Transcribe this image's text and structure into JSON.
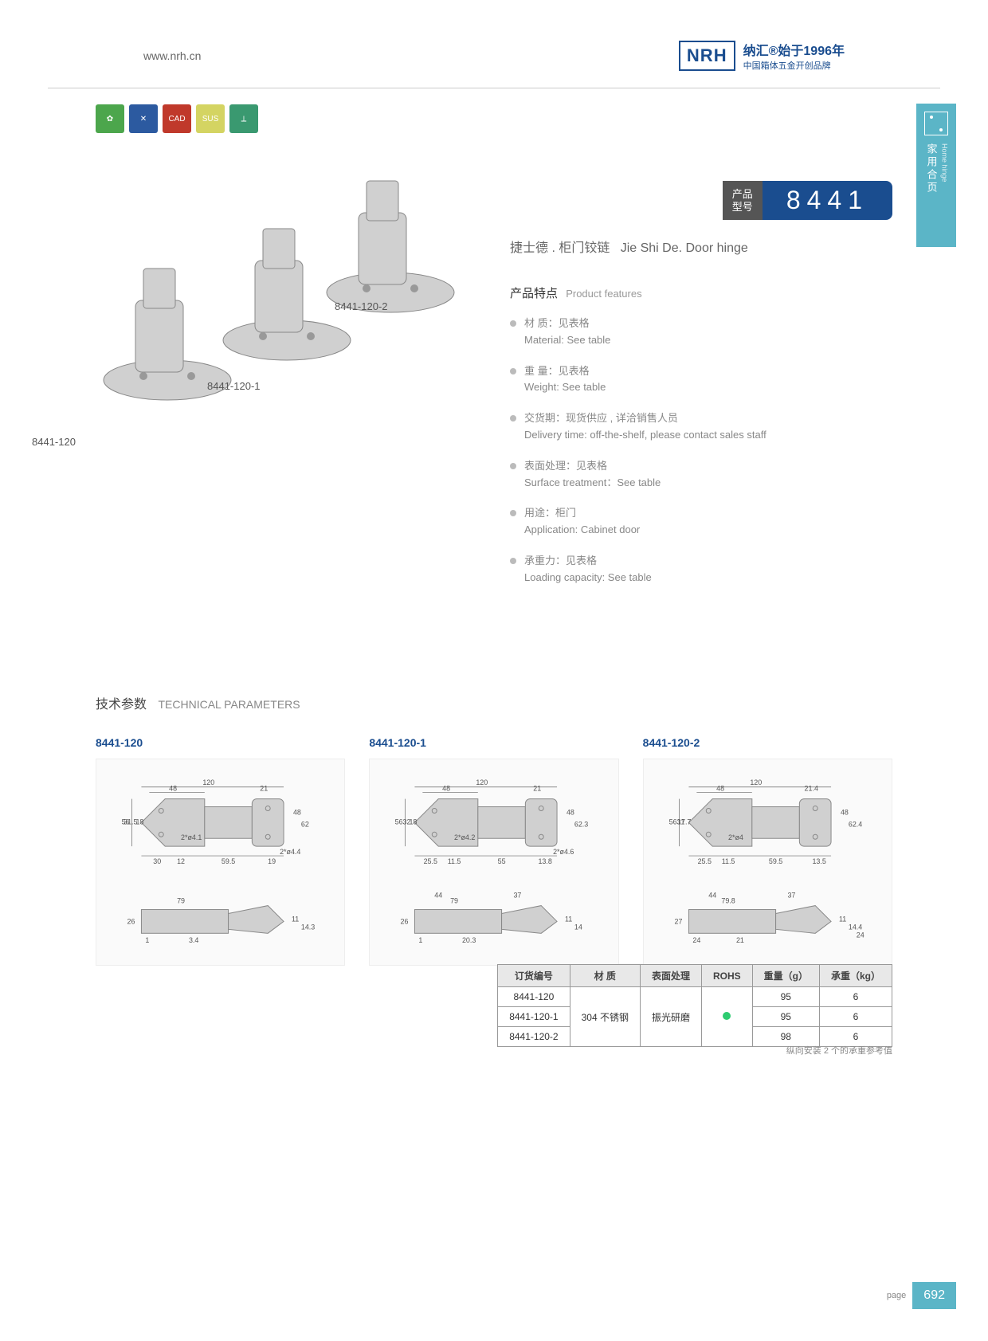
{
  "header": {
    "url": "www.nrh.cn",
    "brand_en": "NRH",
    "brand_cn": "纳汇",
    "since": "®始于1996年",
    "tagline": "中国箱体五金开创品牌"
  },
  "side_tab": {
    "cn": "家用合页",
    "en": "Home hinge"
  },
  "product": {
    "badge_label_l1": "产品",
    "badge_label_l2": "型号",
    "number": "8441",
    "title_cn": "捷士德 . 柜门铰链",
    "title_en": "Jie Shi De. Door hinge",
    "img_labels": {
      "a": "8441-120",
      "b": "8441-120-1",
      "c": "8441-120-2"
    }
  },
  "features": {
    "title_cn": "产品特点",
    "title_en": "Product features",
    "items": [
      {
        "cn": "材 质：见表格",
        "en": "Material: See table"
      },
      {
        "cn": "重 量：见表格",
        "en": "Weight: See table"
      },
      {
        "cn": "交货期：现货供应 , 详洽销售人员",
        "en": "Delivery time: off-the-shelf, please contact sales staff"
      },
      {
        "cn": "表面处理：见表格",
        "en": "Surface treatment：See table"
      },
      {
        "cn": "用途：柜门",
        "en": "Application: Cabinet door"
      },
      {
        "cn": "承重力：见表格",
        "en": "Loading capacity: See table"
      }
    ]
  },
  "tech": {
    "title_cn": "技术参数",
    "title_en": "TECHNICAL PARAMETERS",
    "diagrams": [
      {
        "name": "8441-120",
        "dims": {
          "w": "120",
          "a": "48",
          "b": "21",
          "h": "56",
          "h2": "31.5",
          "h3": "18",
          "d1": "2*ø4.1",
          "d2": "2*ø4.4",
          "c": "30",
          "e": "12",
          "f": "59.5",
          "g": "19",
          "mh": "48",
          "mh2": "62",
          "sw": "79",
          "sh": "26",
          "s1": "3.4",
          "s2": "11",
          "s3": "14.3",
          "s4": "1"
        }
      },
      {
        "name": "8441-120-1",
        "dims": {
          "w": "120",
          "a": "48",
          "b": "21",
          "h": "56",
          "h2": "32",
          "h3": "18",
          "d1": "2*ø4.2",
          "d2": "2*ø4.6",
          "c": "25.5",
          "e": "11.5",
          "f": "55",
          "g": "13.8",
          "mh": "48",
          "mh2": "62.3",
          "sw": "79",
          "sh": "26",
          "s1": "20.3",
          "s2": "11",
          "s3": "14",
          "s4": "1",
          "sx": "44",
          "sy": "37"
        }
      },
      {
        "name": "8441-120-2",
        "dims": {
          "w": "120",
          "a": "48",
          "b": "21.4",
          "h": "56",
          "h2": "31",
          "h3": "17.7",
          "d1": "2*ø4",
          "c": "25.5",
          "e": "11.5",
          "f": "59.5",
          "g": "13.5",
          "mh": "48",
          "mh2": "62.4",
          "sw": "79.8",
          "sh": "27",
          "s1": "21",
          "s2": "11",
          "s3": "14.4",
          "s4": "24",
          "sx": "44",
          "sy": "37"
        }
      }
    ],
    "table": {
      "headers": [
        "订货编号",
        "材  质",
        "表面处理",
        "ROHS",
        "重量（g）",
        "承重（kg）"
      ],
      "material": "304 不锈钢",
      "surface": "振光研磨",
      "rows": [
        {
          "code": "8441-120",
          "weight": "95",
          "load": "6"
        },
        {
          "code": "8441-120-1",
          "weight": "95",
          "load": "6"
        },
        {
          "code": "8441-120-2",
          "weight": "98",
          "load": "6"
        }
      ],
      "note": "纵向安装 2 个的承重参考值"
    }
  },
  "footer": {
    "label": "page",
    "num": "692"
  }
}
